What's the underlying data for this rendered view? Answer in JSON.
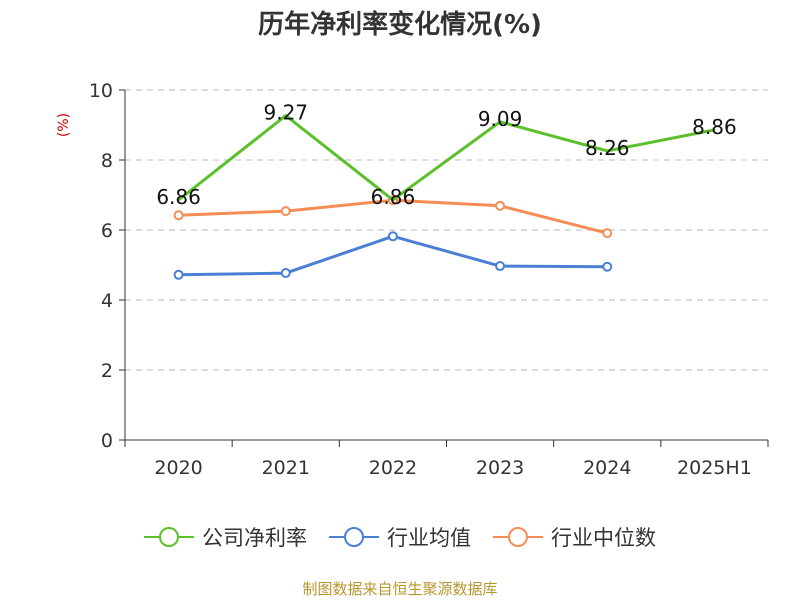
{
  "chart_data": {
    "type": "line",
    "title": "历年净利率变化情况(%)",
    "ylabel": "(%)",
    "xlabel": "",
    "categories": [
      "2020",
      "2021",
      "2022",
      "2023",
      "2024",
      "2025H1"
    ],
    "ylim": [
      0,
      10
    ],
    "yticks": [
      0,
      2,
      4,
      6,
      8,
      10
    ],
    "grid": true,
    "legend_position": "bottom",
    "series": [
      {
        "name": "公司净利率",
        "color": "#5cc02a",
        "values": [
          6.86,
          9.27,
          6.86,
          9.09,
          8.26,
          8.86
        ],
        "data_labels": [
          "6.86",
          "9.27",
          "6.86",
          "9.09",
          "8.26",
          "8.86"
        ],
        "show_markers": false
      },
      {
        "name": "行业均值",
        "color": "#4a7fd6",
        "values": [
          4.72,
          4.77,
          5.82,
          4.97,
          4.95,
          null
        ],
        "show_markers": true
      },
      {
        "name": "行业中位数",
        "color": "#f58d55",
        "values": [
          6.42,
          6.54,
          6.85,
          6.69,
          5.91,
          null
        ],
        "show_markers": true
      }
    ],
    "source": "制图数据来自恒生聚源数据库"
  }
}
